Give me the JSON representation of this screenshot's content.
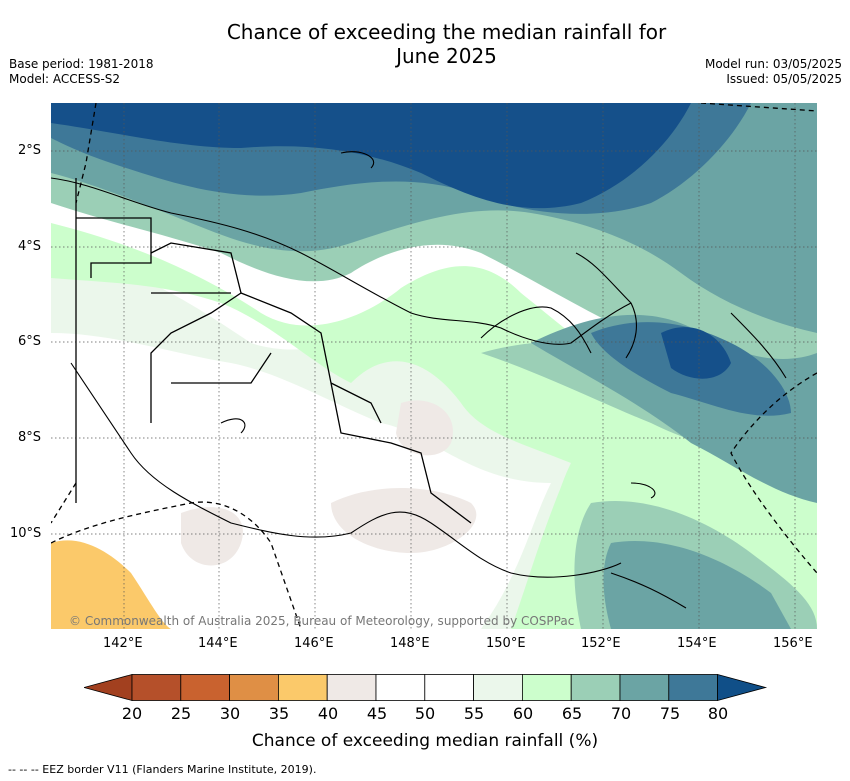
{
  "title_line1": "Chance of exceeding the median rainfall for",
  "title_line2": "June 2025",
  "meta": {
    "base_period": "Base period: 1981-2018",
    "model": "Model: ACCESS-S2",
    "model_run": "Model run: 03/05/2025",
    "issued": "Issued: 05/05/2025"
  },
  "lat_labels": [
    "2°S",
    "4°S",
    "6°S",
    "8°S",
    "10°S"
  ],
  "lon_labels": [
    "142°E",
    "144°E",
    "146°E",
    "148°E",
    "150°E",
    "152°E",
    "154°E",
    "156°E"
  ],
  "copyright": "© Commonwealth of Australia 2025, Bureau of Meteorology, supported by COSPPac",
  "colorbar": {
    "title": "Chance of exceeding median rainfall (%)",
    "ticks": [
      "20",
      "25",
      "30",
      "35",
      "40",
      "45",
      "50",
      "55",
      "60",
      "65",
      "70",
      "75",
      "80"
    ],
    "colors": [
      "#b5502a",
      "#c9622f",
      "#df8f45",
      "#fbc96a",
      "#efe9e6",
      "#ffffff",
      "#ffffff",
      "#ebf7eb",
      "#ccfecc",
      "#9bcfb6",
      "#6ba4a4",
      "#3e7898",
      "#15508a"
    ],
    "under_color": "#a2401f",
    "over_color": "#104f88"
  },
  "footnote": "--  --  -- EEZ border V11 (Flanders Marine Institute, 2019)."
}
